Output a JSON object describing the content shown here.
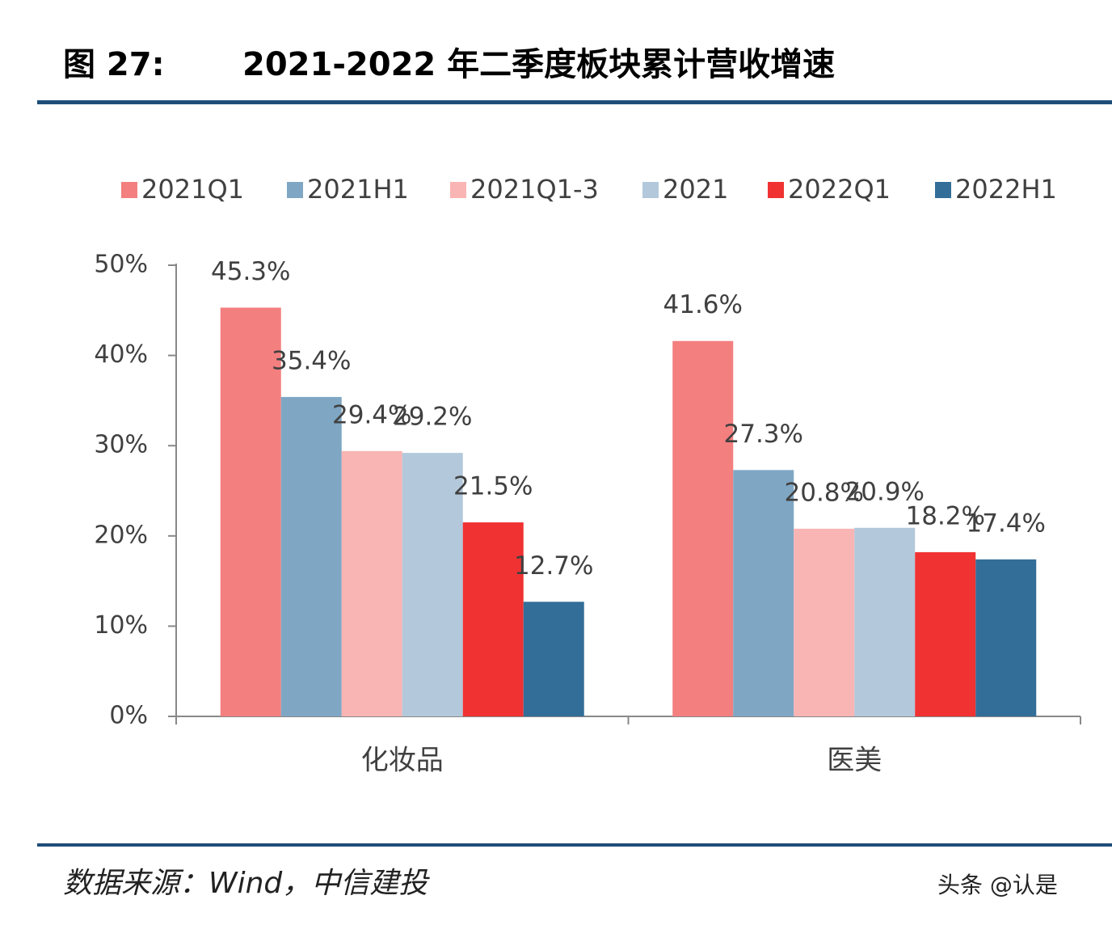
{
  "chart_data": {
    "type": "bar",
    "figure_label": "图 27:",
    "title": "2021-2022 年二季度板块累计营收增速",
    "source": "数据来源：Wind，中信建投",
    "watermark": "头条 @认是",
    "categories": [
      "化妆品",
      "医美"
    ],
    "series": [
      {
        "name": "2021Q1",
        "color": "#f47f7f",
        "values": [
          45.3,
          41.6
        ],
        "value_labels": [
          "45.3%",
          "41.6%"
        ]
      },
      {
        "name": "2021H1",
        "color": "#7fa7c4",
        "values": [
          35.4,
          27.3
        ],
        "value_labels": [
          "35.4%",
          "27.3%"
        ]
      },
      {
        "name": "2021Q1-3",
        "color": "#f9b4b4",
        "values": [
          29.4,
          20.8
        ],
        "value_labels": [
          "29.4%",
          "20.8%"
        ]
      },
      {
        "name": "2021",
        "color": "#b3c8db",
        "values": [
          29.2,
          20.9
        ],
        "value_labels": [
          "29.2%",
          "20.9%"
        ]
      },
      {
        "name": "2022Q1",
        "color": "#f03232",
        "values": [
          21.5,
          18.2
        ],
        "value_labels": [
          "21.5%",
          "18.2%"
        ]
      },
      {
        "name": "2022H1",
        "color": "#336e98",
        "values": [
          12.7,
          17.4
        ],
        "value_labels": [
          "12.7%",
          "17.4%"
        ]
      }
    ],
    "ylim": [
      0,
      50
    ],
    "yticks": [
      {
        "value": 0,
        "label": "0%"
      },
      {
        "value": 10,
        "label": "10%"
      },
      {
        "value": 20,
        "label": "20%"
      },
      {
        "value": 30,
        "label": "30%"
      },
      {
        "value": 40,
        "label": "40%"
      },
      {
        "value": 50,
        "label": "50%"
      }
    ],
    "legend": "top"
  }
}
